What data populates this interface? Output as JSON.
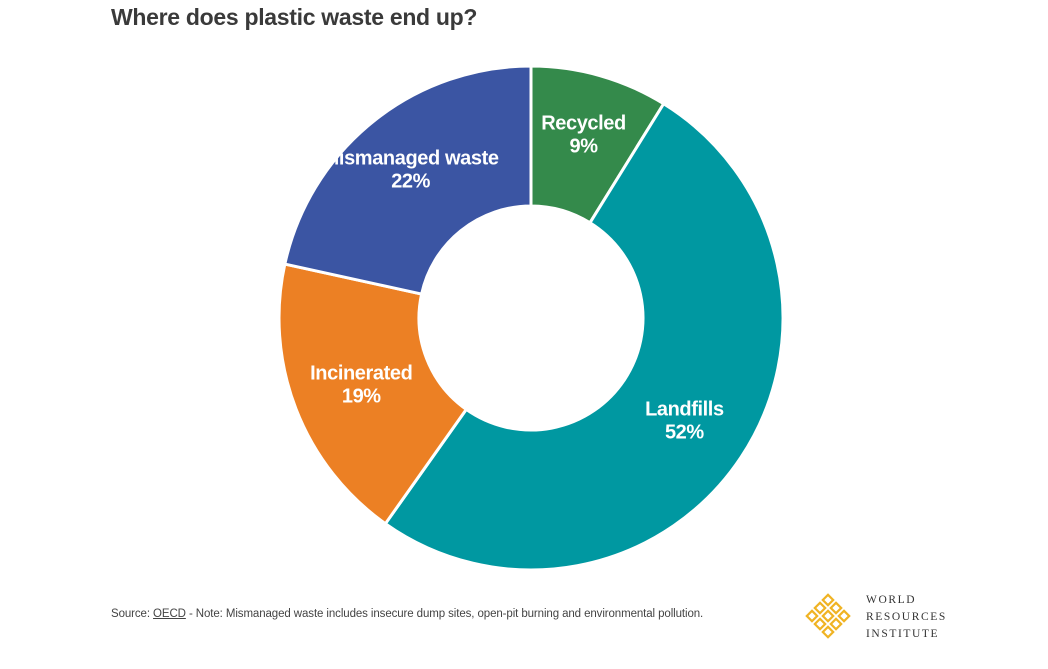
{
  "chart_data": {
    "type": "pie",
    "variant": "donut",
    "title": "Where does plastic waste end up?",
    "slices": [
      {
        "label": "Recycled",
        "value": 9,
        "value_label": "9%",
        "color": "#348a4b"
      },
      {
        "label": "Landfills",
        "value": 52,
        "value_label": "52%",
        "color": "#0098a1"
      },
      {
        "label": "Incinerated",
        "value": 19,
        "value_label": "19%",
        "color": "#ec8024"
      },
      {
        "label": "Mismanaged waste",
        "value": 22,
        "value_label": "22%",
        "color": "#3b55a3"
      }
    ],
    "legend": "none",
    "labels": "on-slice"
  },
  "footnote": {
    "prefix": "Source: ",
    "link_text": "OECD",
    "suffix": " - Note: Mismanaged waste includes insecure dump sites, open-pit burning and environmental pollution."
  },
  "logo": {
    "line1": "WORLD",
    "line2": "RESOURCES",
    "line3": "INSTITUTE",
    "color": "#f0b323",
    "icon": "wri-logo-icon"
  }
}
